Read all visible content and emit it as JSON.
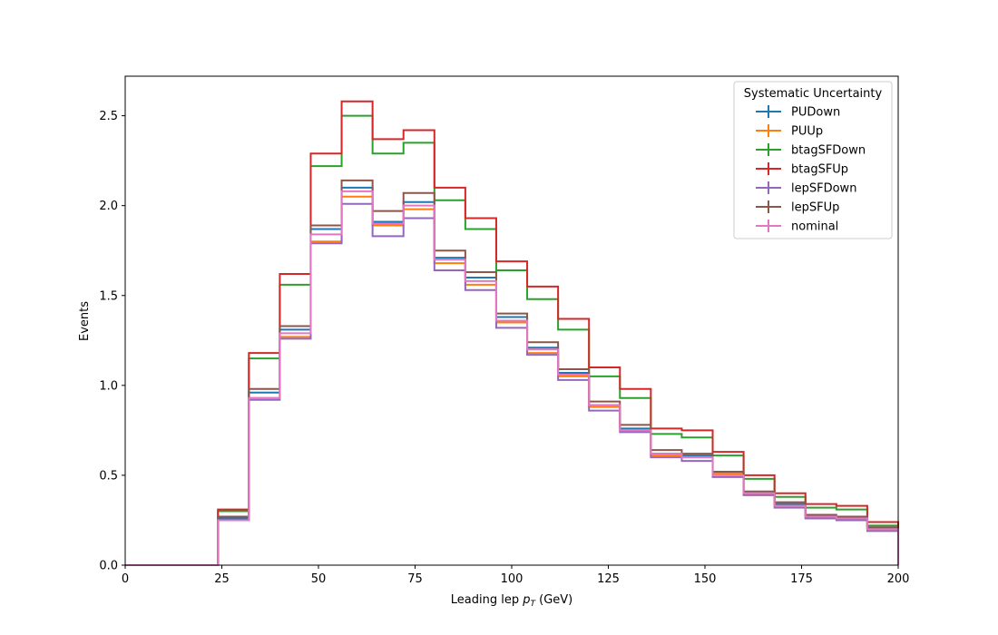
{
  "chart_data": {
    "type": "line",
    "subtype": "step-histogram",
    "xlabel_prefix": "Leading lep ",
    "xlabel_var": "p",
    "xlabel_sub": "T",
    "xlabel_suffix": " (GeV)",
    "ylabel": "Events",
    "xlim": [
      0,
      200
    ],
    "ylim": [
      0,
      2.72
    ],
    "xticks": [
      0,
      25,
      50,
      75,
      100,
      125,
      150,
      175,
      200
    ],
    "yticks": [
      0.0,
      0.5,
      1.0,
      1.5,
      2.0,
      2.5
    ],
    "xtick_labels": [
      "0",
      "25",
      "50",
      "75",
      "100",
      "125",
      "150",
      "175",
      "200"
    ],
    "ytick_labels": [
      "0.0",
      "0.5",
      "1.0",
      "1.5",
      "2.0",
      "2.5"
    ],
    "grid": false,
    "legend_title": "Systematic Uncertainty",
    "legend_position": "top-right",
    "bin_edges": [
      0,
      8,
      16,
      24,
      32,
      40,
      48,
      56,
      64,
      72,
      80,
      88,
      96,
      104,
      112,
      120,
      128,
      136,
      144,
      152,
      160,
      168,
      176,
      184,
      192,
      200
    ],
    "series": [
      {
        "name": "PUDown",
        "color": "#1f77b4",
        "values": [
          0,
          0,
          0,
          0.26,
          0.96,
          1.31,
          1.87,
          2.1,
          1.91,
          2.02,
          1.71,
          1.6,
          1.38,
          1.21,
          1.07,
          0.89,
          0.76,
          0.62,
          0.61,
          0.51,
          0.4,
          0.34,
          0.27,
          0.26,
          0.21
        ]
      },
      {
        "name": "PUUp",
        "color": "#ff7f0e",
        "values": [
          0,
          0,
          0,
          0.25,
          0.93,
          1.27,
          1.8,
          2.05,
          1.89,
          1.98,
          1.68,
          1.56,
          1.35,
          1.18,
          1.05,
          0.88,
          0.75,
          0.61,
          0.6,
          0.51,
          0.39,
          0.33,
          0.26,
          0.26,
          0.2
        ]
      },
      {
        "name": "btagSFDown",
        "color": "#2ca02c",
        "values": [
          0,
          0,
          0,
          0.3,
          1.15,
          1.56,
          2.22,
          2.5,
          2.29,
          2.35,
          2.03,
          1.87,
          1.64,
          1.48,
          1.31,
          1.05,
          0.93,
          0.73,
          0.71,
          0.61,
          0.48,
          0.38,
          0.32,
          0.31,
          0.22
        ]
      },
      {
        "name": "btagSFUp",
        "color": "#d62728",
        "values": [
          0,
          0,
          0,
          0.31,
          1.18,
          1.62,
          2.29,
          2.58,
          2.37,
          2.42,
          2.1,
          1.93,
          1.69,
          1.55,
          1.37,
          1.1,
          0.98,
          0.76,
          0.75,
          0.63,
          0.5,
          0.4,
          0.34,
          0.33,
          0.24
        ]
      },
      {
        "name": "lepSFDown",
        "color": "#9467bd",
        "values": [
          0,
          0,
          0,
          0.25,
          0.92,
          1.26,
          1.79,
          2.01,
          1.83,
          1.93,
          1.64,
          1.53,
          1.32,
          1.17,
          1.03,
          0.86,
          0.74,
          0.6,
          0.58,
          0.49,
          0.39,
          0.32,
          0.26,
          0.25,
          0.19
        ]
      },
      {
        "name": "lepSFUp",
        "color": "#8c564b",
        "values": [
          0,
          0,
          0,
          0.27,
          0.98,
          1.33,
          1.89,
          2.14,
          1.97,
          2.07,
          1.75,
          1.63,
          1.4,
          1.24,
          1.09,
          0.91,
          0.78,
          0.64,
          0.62,
          0.52,
          0.41,
          0.35,
          0.28,
          0.27,
          0.21
        ]
      },
      {
        "name": "nominal",
        "color": "#e377c2",
        "values": [
          0,
          0,
          0,
          0.25,
          0.93,
          1.29,
          1.84,
          2.08,
          1.9,
          2.0,
          1.7,
          1.58,
          1.36,
          1.2,
          1.06,
          0.89,
          0.75,
          0.62,
          0.6,
          0.5,
          0.4,
          0.33,
          0.27,
          0.26,
          0.2
        ]
      }
    ]
  }
}
